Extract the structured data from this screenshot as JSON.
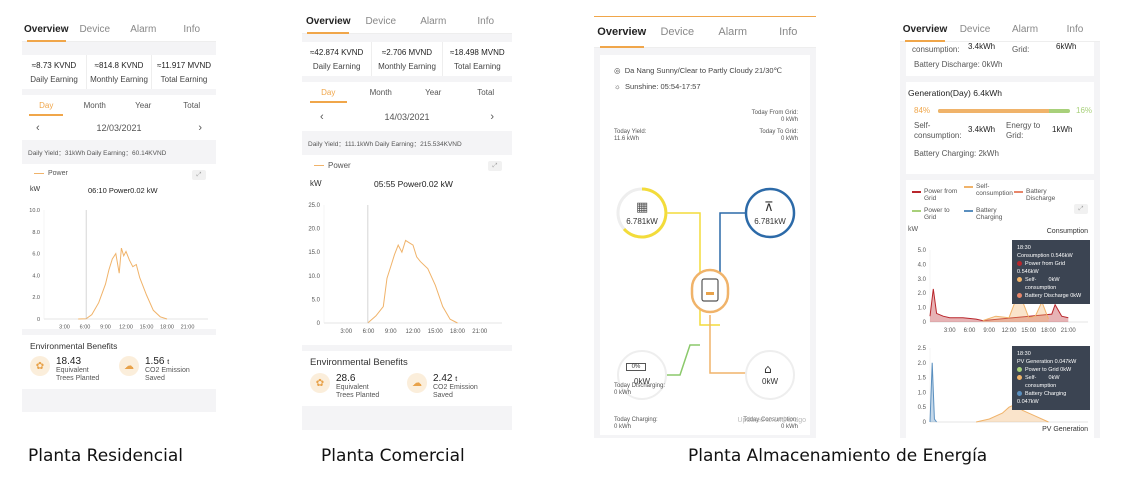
{
  "tabs": [
    "Overview",
    "Device",
    "Alarm",
    "Info"
  ],
  "residential": {
    "earnings": [
      {
        "value": "≈8.73 KVND",
        "label": "Daily Earning"
      },
      {
        "value": "≈814.8 KVND",
        "label": "Monthly Earning"
      },
      {
        "value": "≈11.917 MVND",
        "label": "Total Earning"
      }
    ],
    "periods": [
      "Day",
      "Month",
      "Year",
      "Total"
    ],
    "date": "12/03/2021",
    "yield_line": "Daily Yield：31kWh   Daily Earning：60.14KVND",
    "legend": "Power",
    "unit": "kW",
    "readout": "06:10 Power0.02 kW",
    "env_title": "Environmental Benefits",
    "trees_value": "18.43",
    "trees_label_1": "Equivalent",
    "trees_label_2": "Trees Planted",
    "co2_value": "1.56",
    "co2_unit": "t",
    "co2_label_1": "CO2 Emission",
    "co2_label_2": "Saved",
    "caption": "Planta Residencial"
  },
  "commercial": {
    "earnings": [
      {
        "value": "≈42.874 KVND",
        "label": "Daily Earning"
      },
      {
        "value": "≈2.706 MVND",
        "label": "Monthly Earning"
      },
      {
        "value": "≈18.498 MVND",
        "label": "Total Earning"
      }
    ],
    "periods": [
      "Day",
      "Month",
      "Year",
      "Total"
    ],
    "date": "14/03/2021",
    "yield_line": "Daily Yield：111.1kWh   Daily Earning：215.534KVND",
    "legend": "Power",
    "unit": "kW",
    "readout": "05:55 Power0.02 kW",
    "env_title": "Environmental Benefits",
    "trees_value": "28.6",
    "trees_label_1": "Equivalent",
    "trees_label_2": "Trees Planted",
    "co2_value": "2.42",
    "co2_unit": "t",
    "co2_label_1": "CO2 Emission",
    "co2_label_2": "Saved",
    "caption": "Planta Comercial"
  },
  "storage": {
    "weather": "Da Nang Sunny/Clear to Partly Cloudy 21/30℃",
    "sunshine": "Sunshine:  05:54-17:57",
    "from_grid_label": "Today From Grid:",
    "from_grid_value": "0 kWh",
    "to_grid_label": "Today To Grid:",
    "to_grid_value": "0 kWh",
    "yield_label": "Today Yield:",
    "yield_value": "11.6 kWh",
    "pv_power": "6.781kW",
    "grid_power": "6.781kW",
    "battery_pct": "0%",
    "battery_power": "0kW",
    "home_power": "0kW",
    "charging_label": "Today Charging:",
    "charging_value": "0 kWh",
    "discharging_label": "Today Discharging:",
    "discharging_value": "0 kWh",
    "consumption_label": "Today Consumption:",
    "consumption_value": "0 kWh",
    "updated": "Updated to:1mins ago",
    "caption": "Planta Almacenamiento de Energía"
  },
  "storage_detail": {
    "top_partial_1": "consumption:",
    "top_partial_2": "3.4kWh",
    "top_partial_3": "Grid:",
    "top_partial_4": "6kWh",
    "battery_discharge": "Battery Discharge: 0kWh",
    "gen_title": "Generation(Day) 6.4kWh",
    "pct_left": "84%",
    "pct_right": "16%",
    "self_cons_label_1": "Self-",
    "self_cons_label_2": "consumption:",
    "self_cons_value": "3.4kWh",
    "energy_grid_label_1": "Energy to",
    "energy_grid_label_2": "Grid:",
    "energy_grid_value": "1kWh",
    "battery_charging": "Battery Charging: 2kWh",
    "legend": [
      {
        "name": "Power from Grid",
        "color": "#b9262c"
      },
      {
        "name": "Self-consumption",
        "color": "#f0b36a"
      },
      {
        "name": "Battery Discharge",
        "color": "#e8866a"
      },
      {
        "name": "Power to Grid",
        "color": "#a8d07a"
      },
      {
        "name": "Battery Charging",
        "color": "#5a8fbf"
      }
    ],
    "unit": "kW",
    "consumption_title": "Consumption",
    "generation_title": "PV Generation",
    "tip1": {
      "time": "18:30",
      "l1": "Consumption  0.546kW",
      "l2": "Power from Grid  0.546kW",
      "l3a": "Self-",
      "l3b": "consumption",
      "l3v": "0kW",
      "l4": "Battery Discharge  0kW"
    },
    "tip2": {
      "time": "18:30",
      "l1": "PV Generation  0.047kW",
      "l2": "Power to Grid  0kW",
      "l3a": "Self-",
      "l3b": "consumption",
      "l3v": "0kW",
      "l4": "Battery Charging  0.047kW"
    }
  },
  "chart_data": [
    {
      "type": "line",
      "title": "Power",
      "ylabel": "kW",
      "ylim": [
        0,
        10
      ],
      "yticks": [
        "10.0",
        "8.0",
        "6.0",
        "4.0",
        "2.0",
        "0"
      ],
      "xticks": [
        "3:00",
        "6:00",
        "9:00",
        "12:00",
        "15:00",
        "18:00",
        "21:00"
      ],
      "series": [
        {
          "name": "Power",
          "x": [
            "5:00",
            "6:10",
            "7:00",
            "8:00",
            "9:00",
            "9:30",
            "10:00",
            "10:30",
            "11:00",
            "11:20",
            "11:40",
            "12:00",
            "12:30",
            "13:00",
            "13:30",
            "14:00",
            "15:00",
            "16:00",
            "17:00",
            "18:00"
          ],
          "values": [
            0,
            0.02,
            0.4,
            1.5,
            3.2,
            4.5,
            5.5,
            6.0,
            4.2,
            6.5,
            5.8,
            6.2,
            5.4,
            4.8,
            5.0,
            3.8,
            2.2,
            0.8,
            0.2,
            0
          ]
        }
      ]
    },
    {
      "type": "line",
      "title": "Power",
      "ylabel": "kW",
      "ylim": [
        0,
        25
      ],
      "yticks": [
        "25.0",
        "20.0",
        "15.0",
        "10.0",
        "5.0",
        "0"
      ],
      "xticks": [
        "3:00",
        "6:00",
        "9:00",
        "12:00",
        "15:00",
        "18:00",
        "21:00"
      ],
      "series": [
        {
          "name": "Power",
          "x": [
            "5:55",
            "7:00",
            "8:00",
            "8:30",
            "9:00",
            "9:30",
            "10:00",
            "10:30",
            "11:00",
            "11:30",
            "12:00",
            "12:30",
            "13:00",
            "14:00",
            "15:00",
            "16:00",
            "17:00",
            "18:00"
          ],
          "values": [
            0.02,
            1.5,
            3.5,
            9.5,
            12.0,
            14.5,
            16.5,
            15.0,
            17.5,
            17.0,
            16.5,
            14.0,
            13.0,
            11.5,
            8.0,
            3.5,
            0.8,
            0
          ]
        }
      ]
    },
    {
      "type": "line",
      "title": "Consumption",
      "ylabel": "kW",
      "ylim": [
        0,
        5.0
      ],
      "yticks": [
        "5.0",
        "4.0",
        "3.0",
        "2.0",
        "1.0",
        "0"
      ],
      "xticks": [
        "3:00",
        "6:00",
        "9:00",
        "12:00",
        "15:00",
        "18:00",
        "21:00"
      ],
      "series": [
        {
          "name": "Power from Grid",
          "x": [
            "0:00",
            "0:30",
            "1:00",
            "2:00",
            "3:00",
            "5:00",
            "7:00",
            "8:00",
            "18:30",
            "19:00",
            "20:00",
            "21:00"
          ],
          "values": [
            0.4,
            2.3,
            0.6,
            0.4,
            0.3,
            0.3,
            0.2,
            0.1,
            0.546,
            1.2,
            0.4,
            0.3
          ]
        },
        {
          "name": "Self-consumption",
          "x": [
            "8:00",
            "10:00",
            "12:00",
            "13:00",
            "14:00",
            "15:00",
            "16:00",
            "17:00",
            "18:00"
          ],
          "values": [
            0.1,
            0.4,
            0.3,
            1.5,
            1.5,
            0.3,
            0.4,
            1.4,
            0.2
          ]
        }
      ]
    },
    {
      "type": "line",
      "title": "PV Generation",
      "ylabel": "kW",
      "ylim": [
        0,
        2.5
      ],
      "yticks": [
        "2.5",
        "2.0",
        "1.5",
        "1.0",
        "0.5",
        "0"
      ],
      "series": [
        {
          "name": "Battery Charging",
          "x": [
            "0:00",
            "0:20",
            "0:40",
            "1:00"
          ],
          "values": [
            0,
            2.0,
            0.1,
            0
          ]
        },
        {
          "name": "Self-consumption",
          "x": [
            "7:00",
            "9:00",
            "11:00",
            "12:00",
            "13:00",
            "14:00",
            "16:00",
            "18:00"
          ],
          "values": [
            0,
            0.1,
            0.3,
            0.5,
            0.6,
            0.4,
            0.2,
            0
          ]
        }
      ]
    }
  ]
}
